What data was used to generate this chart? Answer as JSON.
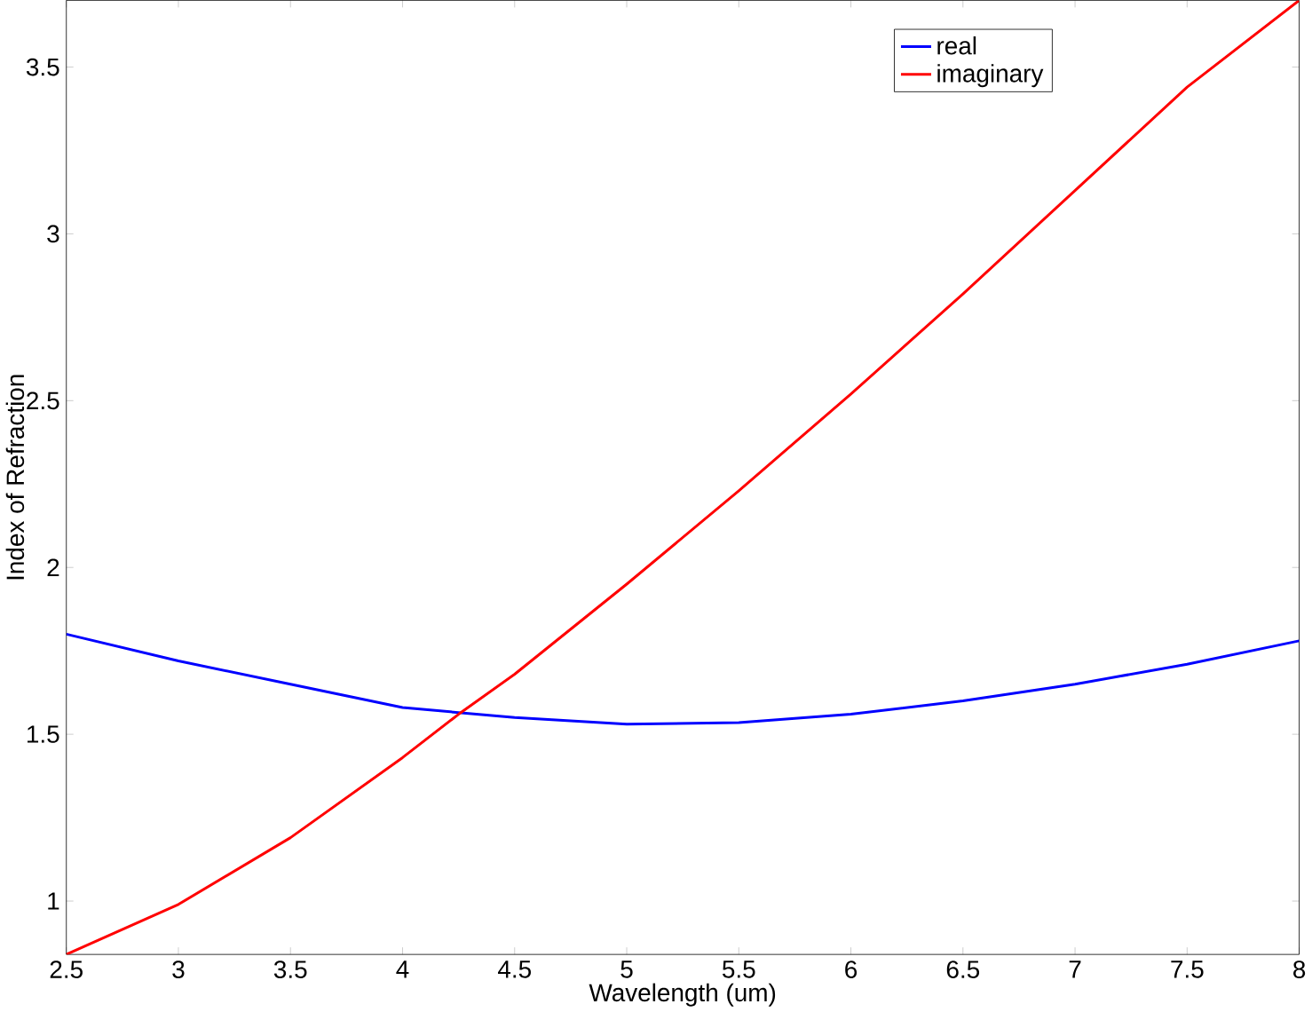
{
  "chart_data": {
    "type": "line",
    "xlabel": "Wavelength (um)",
    "ylabel": "Index of Refraction",
    "xlim": [
      2.5,
      8
    ],
    "ylim": [
      0.84,
      3.7
    ],
    "xticks": [
      2.5,
      3,
      3.5,
      4,
      4.5,
      5,
      5.5,
      6,
      6.5,
      7,
      7.5,
      8
    ],
    "yticks": [
      1,
      1.5,
      2,
      2.5,
      3,
      3.5
    ],
    "legend": "top right",
    "grid": false,
    "marker": "none",
    "line_style": "solid",
    "series": [
      {
        "name": "real",
        "color": "#0000ff",
        "x": [
          2.5,
          3,
          3.5,
          4,
          4.5,
          5,
          5.5,
          6,
          6.5,
          7,
          7.5,
          8
        ],
        "values": [
          1.8,
          1.72,
          1.65,
          1.58,
          1.55,
          1.53,
          1.535,
          1.56,
          1.6,
          1.65,
          1.71,
          1.78
        ]
      },
      {
        "name": "imaginary",
        "color": "#ff0000",
        "x": [
          2.5,
          3,
          3.5,
          4,
          4.25,
          4.5,
          5,
          5.5,
          6,
          6.5,
          7,
          7.5,
          8
        ],
        "values": [
          0.84,
          0.99,
          1.19,
          1.43,
          1.56,
          1.68,
          1.95,
          2.23,
          2.52,
          2.82,
          3.13,
          3.44,
          3.7
        ]
      }
    ]
  }
}
